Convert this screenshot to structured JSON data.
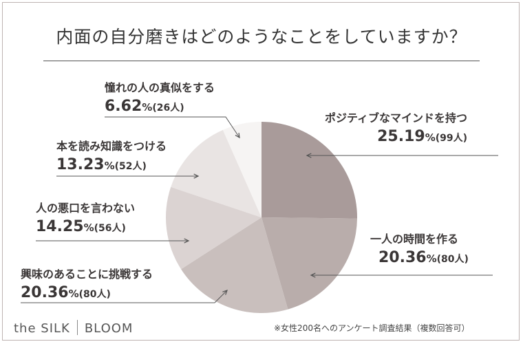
{
  "title": "内面の自分磨きはどのようなことをしていますか？",
  "brand": {
    "left": "the SILK",
    "right": "BLOOM"
  },
  "note": "※女性200名へのアンケート調査結果（複数回答可）",
  "colors": {
    "slices": [
      "#a99b9a",
      "#b9adab",
      "#c9bfbd",
      "#dbd3d2",
      "#e9e4e3",
      "#f6f4f3"
    ],
    "line": "#555555"
  },
  "chart_data": {
    "type": "pie",
    "title": "内面の自分磨きはどのようなことをしていますか？",
    "slices": [
      {
        "label": "ポジティブなマインドを持つ",
        "percent": "25.19",
        "count": "99人",
        "value": 99
      },
      {
        "label": "一人の時間を作る",
        "percent": "20.36",
        "count": "80人",
        "value": 80
      },
      {
        "label": "興味のあることに挑戦する",
        "percent": "20.36",
        "count": "80人",
        "value": 80
      },
      {
        "label": "人の悪口を言わない",
        "percent": "14.25",
        "count": "56人",
        "value": 56
      },
      {
        "label": "本を読み知識をつける",
        "percent": "13.23",
        "count": "52人",
        "value": 52
      },
      {
        "label": "憧れの人の真似をする",
        "percent": "6.62",
        "count": "26人",
        "value": 26
      }
    ]
  }
}
